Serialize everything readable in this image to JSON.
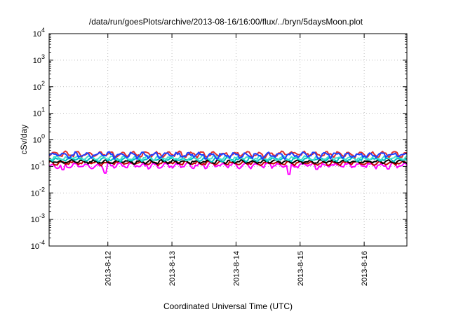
{
  "chart_data": {
    "type": "line",
    "title": "/data/run/goesPlots/archive/2013-08-16/16:00/flux/../bryn/5daysMoon.plot",
    "xlabel": "Coordinated Universal Time (UTC)",
    "ylabel": "cSv/day",
    "yscale": "log",
    "ylim": [
      0.0001,
      10000
    ],
    "y_ticks": [
      {
        "value": 0.0001,
        "base": "10",
        "exp": "-4"
      },
      {
        "value": 0.001,
        "base": "10",
        "exp": "-3"
      },
      {
        "value": 0.01,
        "base": "10",
        "exp": "-2"
      },
      {
        "value": 0.1,
        "base": "10",
        "exp": "-1"
      },
      {
        "value": 1,
        "base": "10",
        "exp": "0"
      },
      {
        "value": 10,
        "base": "10",
        "exp": "1"
      },
      {
        "value": 100,
        "base": "10",
        "exp": "2"
      },
      {
        "value": 1000,
        "base": "10",
        "exp": "3"
      },
      {
        "value": 10000,
        "base": "10",
        "exp": "4"
      }
    ],
    "xlim": [
      "2013-08-11T02:00",
      "2013-08-16T16:00"
    ],
    "x_ticks": [
      "2013-8-12",
      "2013-8-13",
      "2013-8-14",
      "2013-8-15",
      "2013-8-16"
    ],
    "x_tick_values": [
      "2013-08-12",
      "2013-08-13",
      "2013-08-14",
      "2013-08-15",
      "2013-08-16"
    ],
    "grid": true,
    "series": [
      {
        "color": "#ff00ff",
        "base": 0.11,
        "ripple": 0.28,
        "dips": [
          [
            "2013-08-11T23:00",
            0.056
          ],
          [
            "2013-08-14T20:00",
            0.05
          ],
          [
            "2013-08-11T07:00",
            0.075
          ],
          [
            "2013-08-15T06:00",
            0.078
          ],
          [
            "2013-08-16T09:00",
            0.08
          ]
        ]
      },
      {
        "color": "#c00000",
        "base": 0.135,
        "ripple": 0.22,
        "dips": []
      },
      {
        "color": "#000000",
        "base": 0.15,
        "ripple": 0.2,
        "dips": []
      },
      {
        "color": "#00bfbf",
        "base": 0.185,
        "ripple": 0.22,
        "dips": []
      },
      {
        "color": "#40e0d0",
        "base": 0.21,
        "ripple": 0.25,
        "dips": []
      },
      {
        "color": "#e03030",
        "base": 0.29,
        "ripple": 0.3,
        "dips": []
      },
      {
        "color": "#1f3fff",
        "base": 0.27,
        "ripple": 0.32,
        "dips": []
      }
    ]
  }
}
